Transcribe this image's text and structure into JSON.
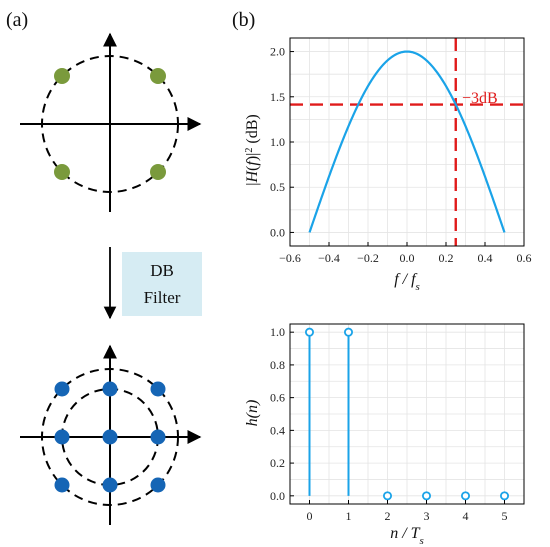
{
  "panel_a": {
    "label": "(a)",
    "filter_box": {
      "line1": "DB",
      "line2": "Filter",
      "fill": "#d6ecf3"
    },
    "top_constellation": {
      "color": "#7a9a3c"
    },
    "bottom_constellation": {
      "color": "#1565b5"
    }
  },
  "panel_b": {
    "label": "(b)",
    "annotation": "−3dB",
    "annotation_color": "#e01b1b"
  },
  "chart_data": [
    {
      "type": "line",
      "title": "",
      "xlabel": "f / f_s",
      "ylabel": "|H(f)|² (dB)",
      "xlim": [
        -0.6,
        0.6
      ],
      "ylim": [
        -0.15,
        2.15
      ],
      "xticks": [
        "−0.6",
        "−0.4",
        "−0.2",
        "0.0",
        "0.2",
        "0.4",
        "0.6"
      ],
      "yticks": [
        "0.0",
        "0.5",
        "1.0",
        "1.5",
        "2.0"
      ],
      "grid": true,
      "series": [
        {
          "color": "#1aa3e8",
          "formula": "2cos(pi f)",
          "x_range": [
            -0.5,
            0.5
          ]
        }
      ],
      "reference_lines": [
        {
          "orientation": "horizontal",
          "value": 1.414,
          "color": "#e01b1b",
          "style": "dashed"
        },
        {
          "orientation": "vertical",
          "value": 0.25,
          "color": "#e01b1b",
          "style": "dashed"
        }
      ]
    },
    {
      "type": "stem",
      "title": "",
      "xlabel": "n / T_s",
      "ylabel": "h(n)",
      "xlim": [
        -0.5,
        5.5
      ],
      "ylim": [
        -0.05,
        1.05
      ],
      "xticks": [
        "0",
        "1",
        "2",
        "3",
        "4",
        "5"
      ],
      "yticks": [
        "0.0",
        "0.2",
        "0.4",
        "0.6",
        "0.8",
        "1.0"
      ],
      "grid": true,
      "series": [
        {
          "color": "#1aa3e8",
          "x": [
            0,
            1,
            2,
            3,
            4,
            5
          ],
          "values": [
            1,
            1,
            0,
            0,
            0,
            0
          ]
        }
      ]
    }
  ]
}
